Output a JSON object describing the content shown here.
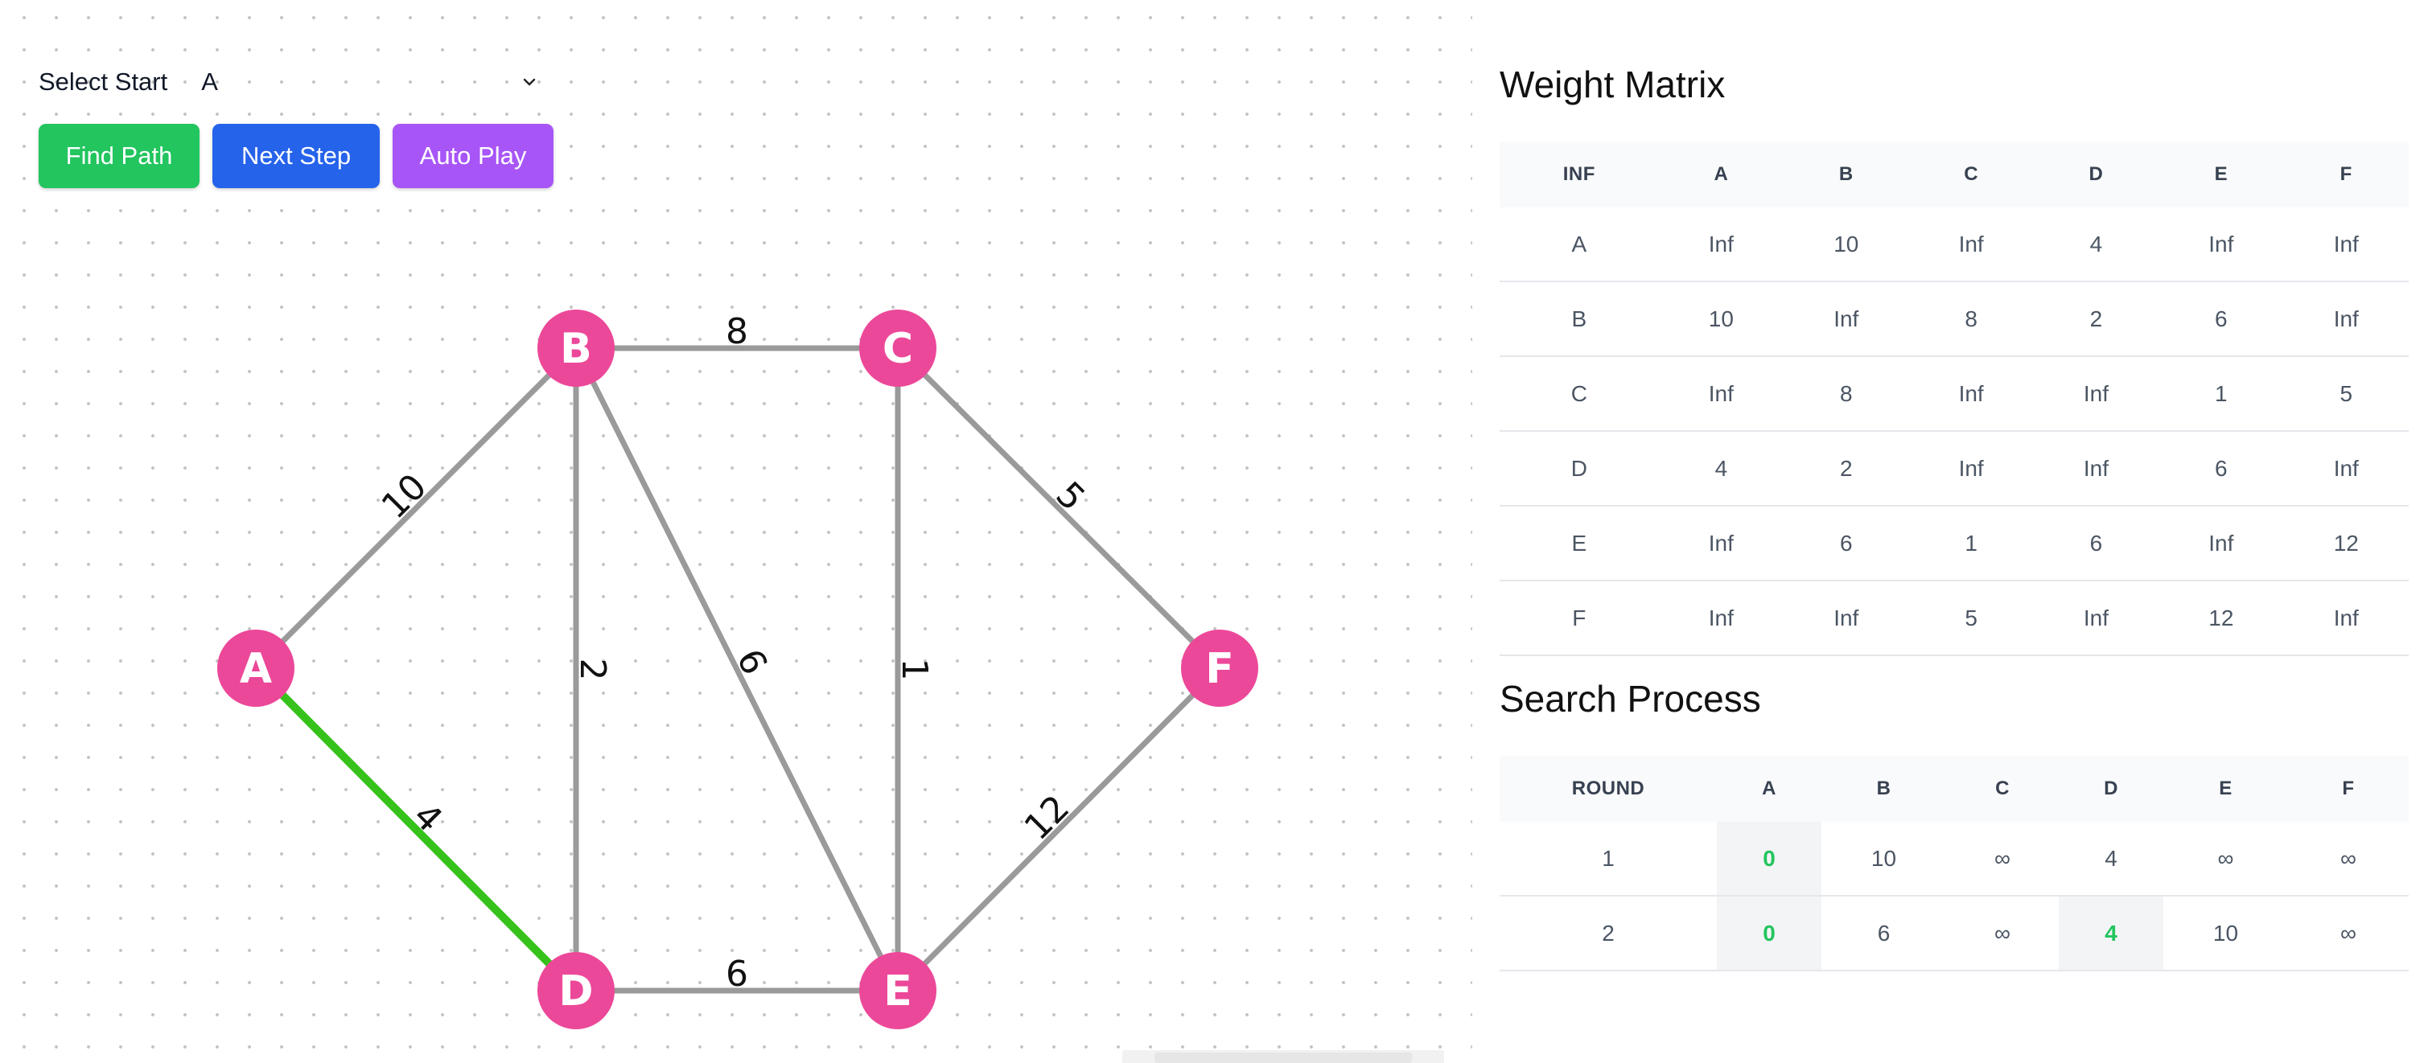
{
  "controls": {
    "select_label": "Select Start",
    "selected_start": "A",
    "buttons": {
      "find_path": "Find Path",
      "next_step": "Next Step",
      "auto_play": "Auto Play"
    }
  },
  "colors": {
    "node": "#ec4899",
    "edge": "#9a9a9a",
    "edge_active": "#36c21b",
    "find_button": "#22c55e",
    "next_button": "#2563eb",
    "auto_button": "#a855f7",
    "highlight_text": "#22c55e"
  },
  "graph": {
    "nodes": [
      "A",
      "B",
      "C",
      "D",
      "E",
      "F"
    ],
    "edges": [
      {
        "from": "A",
        "to": "B",
        "weight": "10",
        "active": false
      },
      {
        "from": "A",
        "to": "D",
        "weight": "4",
        "active": true
      },
      {
        "from": "B",
        "to": "C",
        "weight": "8",
        "active": false
      },
      {
        "from": "B",
        "to": "D",
        "weight": "2",
        "active": false
      },
      {
        "from": "B",
        "to": "E",
        "weight": "6",
        "active": false
      },
      {
        "from": "C",
        "to": "E",
        "weight": "1",
        "active": false
      },
      {
        "from": "C",
        "to": "F",
        "weight": "5",
        "active": false
      },
      {
        "from": "D",
        "to": "E",
        "weight": "6",
        "active": false
      },
      {
        "from": "E",
        "to": "F",
        "weight": "12",
        "active": false
      }
    ]
  },
  "weight_matrix": {
    "title": "Weight Matrix",
    "headers": [
      "INF",
      "A",
      "B",
      "C",
      "D",
      "E",
      "F"
    ],
    "rows": [
      [
        "A",
        "Inf",
        "10",
        "Inf",
        "4",
        "Inf",
        "Inf"
      ],
      [
        "B",
        "10",
        "Inf",
        "8",
        "2",
        "6",
        "Inf"
      ],
      [
        "C",
        "Inf",
        "8",
        "Inf",
        "Inf",
        "1",
        "5"
      ],
      [
        "D",
        "4",
        "2",
        "Inf",
        "Inf",
        "6",
        "Inf"
      ],
      [
        "E",
        "Inf",
        "6",
        "1",
        "6",
        "Inf",
        "12"
      ],
      [
        "F",
        "Inf",
        "Inf",
        "5",
        "Inf",
        "12",
        "Inf"
      ]
    ]
  },
  "search_process": {
    "title": "Search Process",
    "headers": [
      "ROUND",
      "A",
      "B",
      "C",
      "D",
      "E",
      "F"
    ],
    "rows": [
      {
        "cells": [
          "1",
          "0",
          "10",
          "∞",
          "4",
          "∞",
          "∞"
        ],
        "highlight": [
          1
        ]
      },
      {
        "cells": [
          "2",
          "0",
          "6",
          "∞",
          "4",
          "10",
          "∞"
        ],
        "highlight": [
          1,
          4
        ]
      }
    ]
  }
}
